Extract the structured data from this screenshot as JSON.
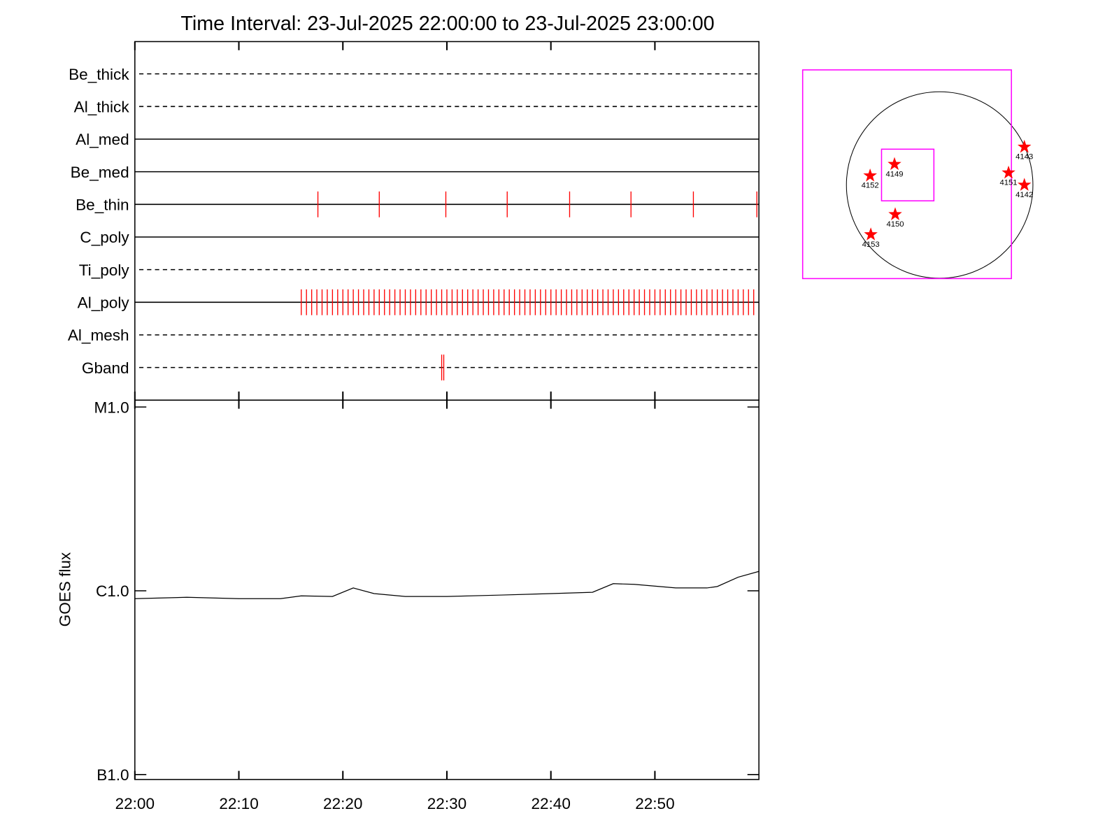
{
  "chart_data": [
    {
      "type": "timeline",
      "title": "Time Interval: 23-Jul-2025 22:00:00 to 23-Jul-2025 23:00:00",
      "xlim": [
        0,
        60
      ],
      "event_color": "#ff0000",
      "rows": [
        {
          "name": "Be_thick",
          "style": "dashed",
          "events": []
        },
        {
          "name": "Al_thick",
          "style": "dashed",
          "events": []
        },
        {
          "name": "Al_med",
          "style": "solid",
          "events": []
        },
        {
          "name": "Be_med",
          "style": "solid",
          "events": []
        },
        {
          "name": "Be_thin",
          "style": "solid",
          "events": [
            17.6,
            23.5,
            29.9,
            35.8,
            41.8,
            47.7,
            53.7,
            59.8
          ]
        },
        {
          "name": "C_poly",
          "style": "solid",
          "events": []
        },
        {
          "name": "Ti_poly",
          "style": "dashed",
          "events": []
        },
        {
          "name": "Al_poly",
          "style": "solid",
          "events": [
            16.0,
            16.5,
            17.0,
            17.5,
            18.0,
            18.5,
            19.0,
            19.5,
            20.0,
            20.5,
            21.0,
            21.5,
            22.0,
            22.5,
            23.0,
            23.5,
            24.0,
            24.5,
            25.0,
            25.5,
            26.0,
            26.5,
            27.0,
            27.5,
            28.0,
            28.5,
            29.0,
            29.5,
            30.0,
            30.5,
            31.0,
            31.5,
            32.0,
            32.5,
            33.0,
            33.5,
            34.0,
            34.5,
            35.0,
            35.5,
            36.0,
            36.5,
            37.0,
            37.5,
            38.0,
            38.5,
            39.0,
            39.5,
            40.0,
            40.5,
            41.0,
            41.5,
            42.0,
            42.5,
            43.0,
            43.5,
            44.0,
            44.5,
            45.0,
            45.5,
            46.0,
            46.5,
            47.0,
            47.5,
            48.0,
            48.5,
            49.0,
            49.5,
            50.0,
            50.5,
            51.0,
            51.5,
            52.0,
            52.5,
            53.0,
            53.5,
            54.0,
            54.5,
            55.0,
            55.5,
            56.0,
            56.5,
            57.0,
            57.5,
            58.0,
            58.5,
            59.0,
            59.5
          ]
        },
        {
          "name": "Al_mesh",
          "style": "dashed",
          "events": []
        },
        {
          "name": "Gband",
          "style": "dashed",
          "events": [
            29.5,
            29.7
          ]
        }
      ]
    },
    {
      "type": "line",
      "ylabel": "GOES flux",
      "log_scale": true,
      "color": "#000000",
      "x": [
        0,
        5,
        10,
        14,
        16,
        19,
        21,
        23,
        26,
        30,
        35,
        40,
        44,
        46,
        48,
        52,
        55,
        56,
        58,
        60
      ],
      "values": [
        9.06e-07,
        9.22e-07,
        9.06e-07,
        9.06e-07,
        9.39e-07,
        9.31e-07,
        1.036e-06,
        9.65e-07,
        9.31e-07,
        9.31e-07,
        9.47e-07,
        9.65e-07,
        9.82e-07,
        1.094e-06,
        1.084e-06,
        1.036e-06,
        1.036e-06,
        1.055e-06,
        1.186e-06,
        1.275e-06
      ],
      "xlim": [
        0,
        60
      ],
      "xticks": [
        {
          "value": 0,
          "label": "22:00"
        },
        {
          "value": 10,
          "label": "22:10"
        },
        {
          "value": 20,
          "label": "22:20"
        },
        {
          "value": 30,
          "label": "22:30"
        },
        {
          "value": 40,
          "label": "22:40"
        },
        {
          "value": 50,
          "label": "22:50"
        }
      ],
      "ylim": [
        9.4e-08,
        1.09e-05
      ],
      "yticks": [
        {
          "value": 1e-07,
          "label": "B1.0"
        },
        {
          "value": 1e-06,
          "label": "C1.0"
        },
        {
          "value": 1e-05,
          "label": "M1.0"
        }
      ]
    },
    {
      "type": "map",
      "disk_radius": 960,
      "disk_color": "#000000",
      "point_color": "#ff0000",
      "boxes": [
        {
          "center": [
            -336,
            111
          ],
          "size": [
            2149,
            2149
          ],
          "color": "#ff00ff"
        },
        {
          "center": [
            -329,
            103
          ],
          "size": [
            539,
            532
          ],
          "color": "#ff00ff"
        }
      ],
      "points": [
        {
          "name": "4143",
          "x": 872,
          "y": 392
        },
        {
          "name": "4149",
          "x": -465,
          "y": 214
        },
        {
          "name": "4152",
          "x": -716,
          "y": 96
        },
        {
          "name": "4151",
          "x": 709,
          "y": 126
        },
        {
          "name": "4142",
          "x": 872,
          "y": 0
        },
        {
          "name": "4150",
          "x": -458,
          "y": -303
        },
        {
          "name": "4153",
          "x": -709,
          "y": -510
        }
      ]
    }
  ]
}
